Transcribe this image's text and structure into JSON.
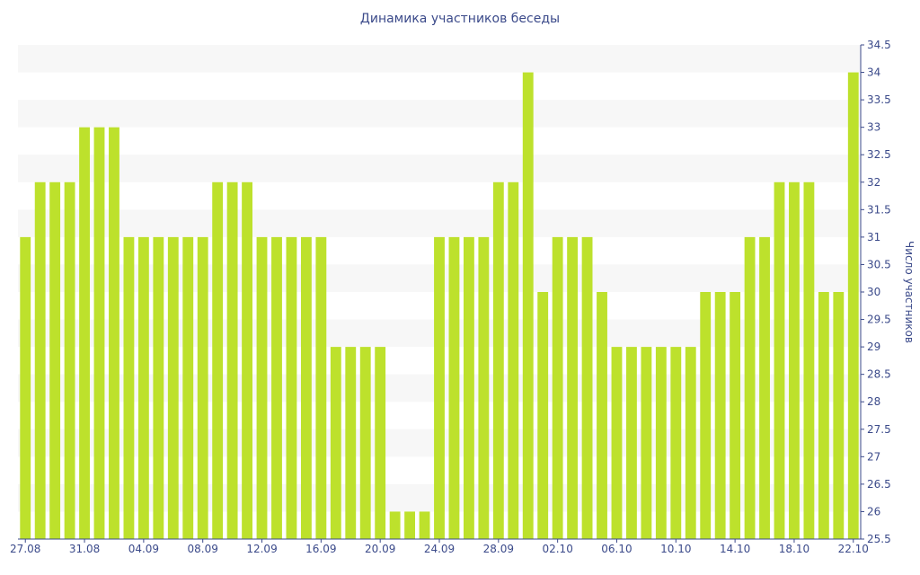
{
  "chart_data": {
    "type": "bar",
    "title": "Динамика участников беседы",
    "xlabel": "",
    "ylabel": "Число участников",
    "ylim": [
      25.5,
      34.5
    ],
    "y_axis_side": "right",
    "grid": "horizontal bands",
    "bar_color": "#bde12c",
    "band_color": "#f7f7f7",
    "text_color": "#3b4a8a",
    "y_ticks": [
      "25.5",
      "26",
      "26.5",
      "27",
      "27.5",
      "28",
      "28.5",
      "29",
      "29.5",
      "30",
      "30.5",
      "31",
      "31.5",
      "32",
      "32.5",
      "33",
      "33.5",
      "34",
      "34.5"
    ],
    "x_ticks": [
      {
        "label": "27.08",
        "index": 0
      },
      {
        "label": "31.08",
        "index": 4
      },
      {
        "label": "04.09",
        "index": 8
      },
      {
        "label": "08.09",
        "index": 12
      },
      {
        "label": "12.09",
        "index": 16
      },
      {
        "label": "16.09",
        "index": 20
      },
      {
        "label": "20.09",
        "index": 24
      },
      {
        "label": "24.09",
        "index": 28
      },
      {
        "label": "28.09",
        "index": 32
      },
      {
        "label": "02.10",
        "index": 36
      },
      {
        "label": "06.10",
        "index": 40
      },
      {
        "label": "10.10",
        "index": 44
      },
      {
        "label": "14.10",
        "index": 48
      },
      {
        "label": "18.10",
        "index": 52
      },
      {
        "label": "22.10",
        "index": 56
      }
    ],
    "categories": [
      "27.08",
      "28.08",
      "29.08",
      "30.08",
      "31.08",
      "01.09",
      "02.09",
      "03.09",
      "04.09",
      "05.09",
      "06.09",
      "07.09",
      "08.09",
      "09.09",
      "10.09",
      "11.09",
      "12.09",
      "13.09",
      "14.09",
      "15.09",
      "16.09",
      "17.09",
      "18.09",
      "19.09",
      "20.09",
      "21.09",
      "22.09",
      "23.09",
      "24.09",
      "25.09",
      "26.09",
      "27.09",
      "28.09",
      "29.09",
      "30.09",
      "01.10",
      "02.10",
      "03.10",
      "04.10",
      "05.10",
      "06.10",
      "07.10",
      "08.10",
      "09.10",
      "10.10",
      "11.10",
      "12.10",
      "13.10",
      "14.10",
      "15.10",
      "16.10",
      "17.10",
      "18.10",
      "19.10",
      "20.10",
      "21.10",
      "22.10"
    ],
    "values": [
      31,
      32,
      32,
      32,
      33,
      33,
      33,
      31,
      31,
      31,
      31,
      31,
      31,
      32,
      32,
      32,
      31,
      31,
      31,
      31,
      31,
      29,
      29,
      29,
      29,
      26,
      26,
      26,
      31,
      31,
      31,
      31,
      32,
      32,
      34,
      30,
      31,
      31,
      31,
      30,
      29,
      29,
      29,
      29,
      29,
      29,
      30,
      30,
      30,
      31,
      31,
      32,
      32,
      32,
      30,
      30,
      34
    ]
  }
}
